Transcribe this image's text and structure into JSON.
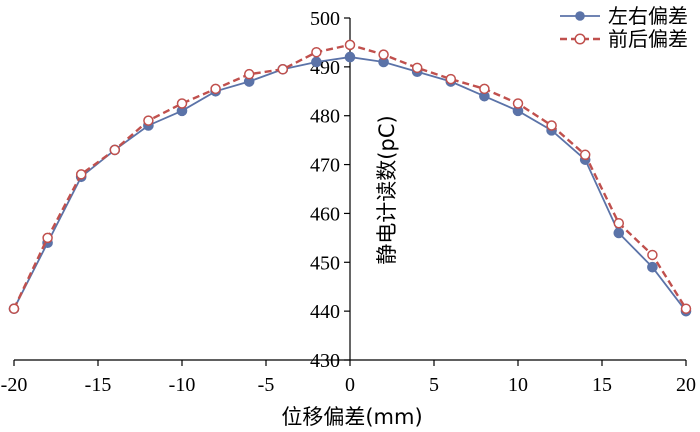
{
  "chart_data": {
    "type": "line",
    "xlabel": "位移偏差(mm)",
    "ylabel": "静电计读数(pC)",
    "xlim": [
      -20,
      20
    ],
    "ylim": [
      430,
      500
    ],
    "xticks": [
      -20,
      -15,
      -10,
      -5,
      0,
      5,
      10,
      15,
      20
    ],
    "yticks": [
      430,
      440,
      450,
      460,
      470,
      480,
      490,
      500
    ],
    "grid": false,
    "legend_position": "top-right",
    "x": [
      -20,
      -18,
      -16,
      -14,
      -12,
      -10,
      -8,
      -6,
      -4,
      -2,
      0,
      2,
      4,
      6,
      8,
      10,
      12,
      14,
      16,
      18,
      20
    ],
    "series": [
      {
        "name": "左右偏差",
        "color": "#5b73a8",
        "marker": "filled-circle",
        "line": "solid",
        "values": [
          440.5,
          454,
          467.5,
          473,
          478,
          481,
          485,
          487,
          489.5,
          491,
          492,
          491,
          489,
          487,
          484,
          481,
          477,
          471,
          456,
          449,
          440
        ]
      },
      {
        "name": "前后偏差",
        "color": "#c0504d",
        "marker": "open-circle",
        "line": "dashed",
        "values": [
          440.5,
          455,
          468,
          473,
          479,
          482.5,
          485.5,
          488.5,
          489.5,
          493,
          494.5,
          492.5,
          489.8,
          487.5,
          485.5,
          482.5,
          478,
          472,
          458,
          451.5,
          440.5
        ]
      }
    ]
  }
}
